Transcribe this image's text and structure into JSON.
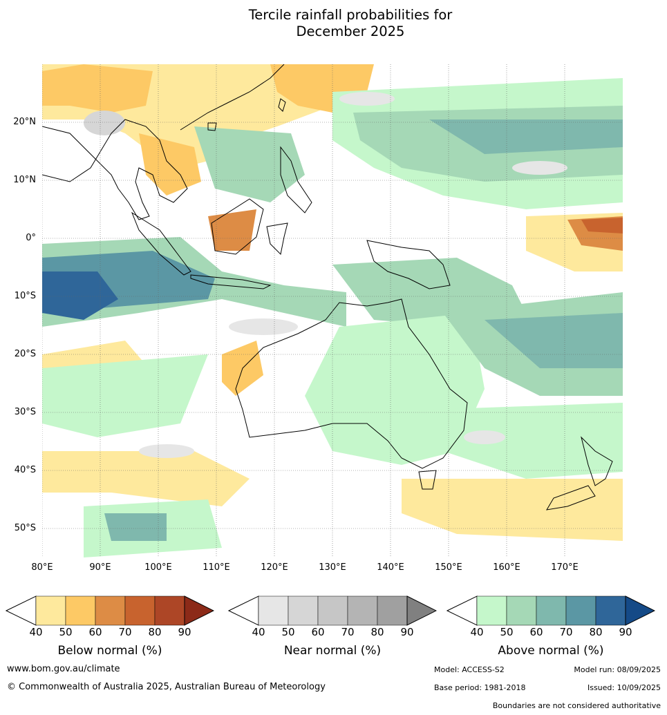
{
  "title_line1": "Tercile rainfall probabilities for",
  "title_line2": "December 2025",
  "map": {
    "lat_labels": [
      "20°N",
      "10°N",
      "0°",
      "10°S",
      "20°S",
      "30°S",
      "40°S",
      "50°S"
    ],
    "lon_labels": [
      "80°E",
      "90°E",
      "100°E",
      "110°E",
      "120°E",
      "130°E",
      "140°E",
      "150°E",
      "160°E",
      "170°E"
    ]
  },
  "colorbars": [
    {
      "name": "below",
      "title": "Below normal (%)",
      "ticks": [
        "40",
        "50",
        "60",
        "70",
        "80",
        "90"
      ],
      "colors": [
        "#fee99d",
        "#fdc965",
        "#dd8c45",
        "#c8632e",
        "#ad4626",
        "#8c2a18"
      ]
    },
    {
      "name": "near",
      "title": "Near normal (%)",
      "ticks": [
        "40",
        "50",
        "60",
        "70",
        "80",
        "90"
      ],
      "colors": [
        "#e6e6e6",
        "#d6d6d6",
        "#c6c6c6",
        "#b4b4b4",
        "#a0a0a0",
        "#808080"
      ]
    },
    {
      "name": "above",
      "title": "Above normal (%)",
      "ticks": [
        "40",
        "50",
        "60",
        "70",
        "80",
        "90"
      ],
      "colors": [
        "#c5f7cb",
        "#a5d8b6",
        "#7fb8ad",
        "#5b97a4",
        "#2f6699",
        "#154a87"
      ]
    }
  ],
  "footer": {
    "website": "www.bom.gov.au/climate",
    "copyright": "© Commonwealth of Australia 2025, Australian Bureau of Meteorology",
    "model": "Model: ACCESS-S2",
    "model_run": "Model run: 08/09/2025",
    "base_period": "Base period: 1981-2018",
    "issued": "Issued: 10/09/2025",
    "disclaimer": "Boundaries are not considered authoritative"
  }
}
